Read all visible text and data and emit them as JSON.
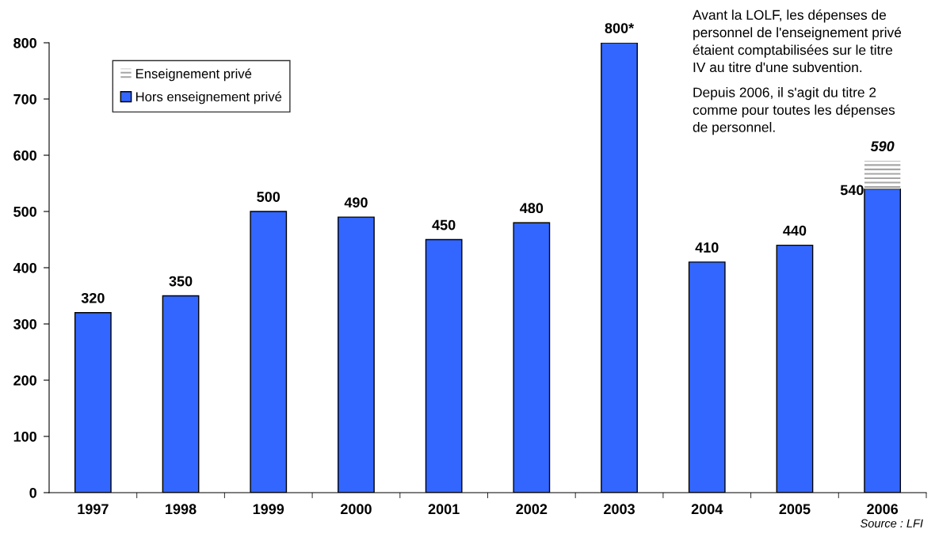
{
  "chart_data": {
    "type": "bar",
    "stacked": true,
    "categories": [
      "1997",
      "1998",
      "1999",
      "2000",
      "2001",
      "2002",
      "2003",
      "2004",
      "2005",
      "2006"
    ],
    "series": [
      {
        "name": "Hors enseignement privé",
        "color": "#3366ff",
        "values": [
          320,
          350,
          500,
          490,
          450,
          480,
          800,
          410,
          440,
          540
        ],
        "value_labels": [
          "320",
          "350",
          "500",
          "490",
          "450",
          "480",
          "800*",
          "410",
          "440",
          "540"
        ]
      },
      {
        "name": "Enseignement privé",
        "color": "#a6a6a6",
        "values": [
          null,
          null,
          null,
          null,
          null,
          null,
          null,
          null,
          null,
          50
        ]
      }
    ],
    "totals": [
      null,
      null,
      null,
      null,
      null,
      null,
      null,
      null,
      null,
      "590"
    ],
    "ylim": [
      0,
      800
    ],
    "yticks": [
      0,
      100,
      200,
      300,
      400,
      500,
      600,
      700,
      800
    ],
    "grid": false,
    "legend": "top left",
    "annotations": [
      "Avant la LOLF, les dépenses de\npersonnel de l'enseignement privé\nétaient comptabilisées sur le titre\nIV au titre d'une subvention.",
      "Depuis 2006, il s'agit du titre 2\ncomme pour toutes les dépenses\nde personnel.",
      "Source : LFI"
    ]
  }
}
